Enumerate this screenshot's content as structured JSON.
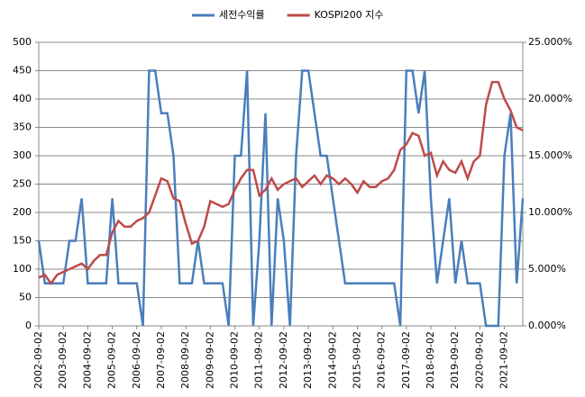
{
  "chart_data": {
    "type": "line",
    "categories": [
      "2002-09-02",
      null,
      null,
      null,
      "2003-09-02",
      null,
      null,
      null,
      "2004-09-02",
      null,
      null,
      null,
      "2005-09-02",
      null,
      null,
      null,
      "2006-09-02",
      null,
      null,
      null,
      "2007-09-02",
      null,
      null,
      null,
      "2008-09-02",
      null,
      null,
      null,
      "2009-09-02",
      null,
      null,
      null,
      "2010-09-02",
      null,
      null,
      null,
      "2011-09-02",
      null,
      null,
      null,
      "2012-09-02",
      null,
      null,
      null,
      "2013-09-02",
      null,
      null,
      null,
      "2014-09-02",
      null,
      null,
      null,
      "2015-09-02",
      null,
      null,
      null,
      "2016-09-02",
      null,
      null,
      null,
      "2017-09-02",
      null,
      null,
      null,
      "2018-09-02",
      null,
      null,
      null,
      "2019-09-02",
      null,
      null,
      null,
      "2020-09-02",
      null,
      null,
      null,
      "2021-09-02",
      null,
      null,
      null
    ],
    "series": [
      {
        "name": "세전수익률",
        "color": "#4a7ebb",
        "axis": "y2",
        "values": [
          7.5,
          3.75,
          3.75,
          3.75,
          3.75,
          7.5,
          7.5,
          11.25,
          3.75,
          3.75,
          3.75,
          3.75,
          11.25,
          3.75,
          3.75,
          3.75,
          3.75,
          0,
          22.5,
          22.5,
          18.75,
          18.75,
          15,
          3.75,
          3.75,
          3.75,
          7.5,
          3.75,
          3.75,
          3.75,
          3.75,
          0,
          15,
          15,
          22.5,
          0,
          7.5,
          18.75,
          0,
          11.25,
          7.5,
          0,
          15,
          22.5,
          22.5,
          18.75,
          15,
          15,
          11.25,
          7.5,
          3.75,
          3.75,
          3.75,
          3.75,
          3.75,
          3.75,
          3.75,
          3.75,
          3.75,
          0,
          22.5,
          22.5,
          18.75,
          22.5,
          11.25,
          3.75,
          7.5,
          11.25,
          3.75,
          7.5,
          3.75,
          3.75,
          3.75,
          0,
          0,
          0,
          15,
          18.75,
          3.75,
          11.25
        ]
      },
      {
        "name": "KOSPI200 지수",
        "color": "#be4b48",
        "values": [
          85,
          90,
          75,
          90,
          95,
          100,
          105,
          110,
          100,
          115,
          125,
          125,
          165,
          185,
          175,
          175,
          185,
          190,
          200,
          230,
          260,
          255,
          225,
          220,
          180,
          145,
          150,
          175,
          220,
          215,
          210,
          215,
          240,
          260,
          275,
          275,
          230,
          240,
          260,
          240,
          250,
          255,
          260,
          245,
          255,
          265,
          250,
          265,
          260,
          250,
          260,
          250,
          235,
          255,
          245,
          245,
          255,
          260,
          275,
          310,
          320,
          340,
          335,
          300,
          305,
          265,
          290,
          275,
          270,
          290,
          260,
          290,
          300,
          390,
          430,
          430,
          400,
          380,
          350,
          345
        ]
      }
    ],
    "ylim": [
      0,
      500
    ],
    "yticks": [
      0,
      50,
      100,
      150,
      200,
      250,
      300,
      350,
      400,
      450,
      500
    ],
    "y2lim": [
      0,
      25
    ],
    "y2ticks": [
      {
        "value": 0,
        "label": "0.000%"
      },
      {
        "value": 5,
        "label": "5.000%"
      },
      {
        "value": 10,
        "label": "10.000%"
      },
      {
        "value": 15,
        "label": "15.000%"
      },
      {
        "value": 20,
        "label": "20.000%"
      },
      {
        "value": 25,
        "label": "25.000%"
      }
    ],
    "grid": true,
    "legend": "top"
  }
}
